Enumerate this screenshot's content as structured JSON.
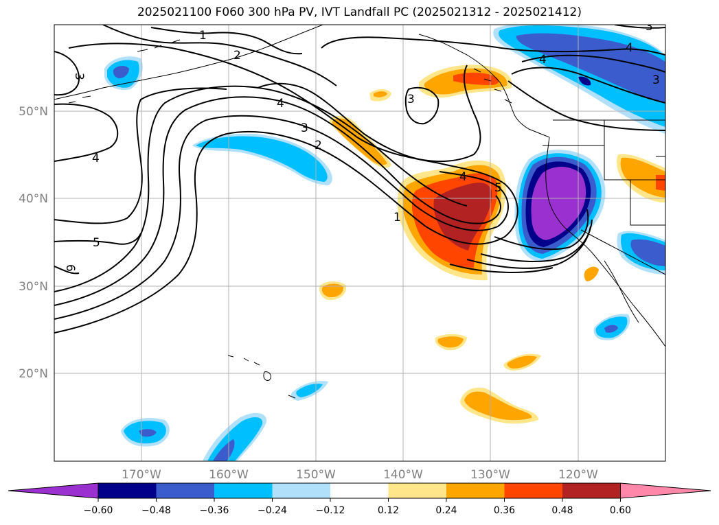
{
  "title": "2025021100 F060 300 hPa PV, IVT Landfall PC (2025021312 - 2025021412)",
  "map": {
    "lat_labels": [
      "50°N",
      "40°N",
      "30°N",
      "20°N"
    ],
    "lon_labels": [
      "170°W",
      "160°W",
      "150°W",
      "140°W",
      "130°W",
      "120°W"
    ],
    "pv_contour_labels": [
      "1",
      "2",
      "3",
      "4",
      "3",
      "4",
      "4",
      "3",
      "2",
      "1",
      "4",
      "5",
      "5",
      "6",
      "4",
      "3",
      "3"
    ]
  },
  "colorbar": {
    "ticks": [
      "−0.60",
      "−0.48",
      "−0.36",
      "−0.24",
      "−0.12",
      "0.12",
      "0.24",
      "0.36",
      "0.48",
      "0.60"
    ],
    "colors": [
      "#9b30d0",
      "#00008b",
      "#3a5ccc",
      "#00bfff",
      "#b0e0fa",
      "#ffffff",
      "#ffe68a",
      "#ffa500",
      "#ff4500",
      "#b22222",
      "#ff88aa"
    ]
  }
}
